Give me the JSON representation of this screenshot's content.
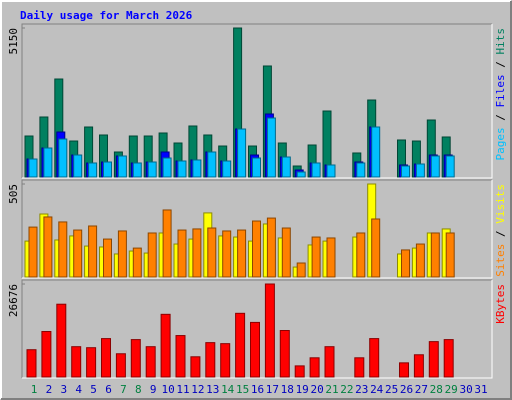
{
  "chart_data": [
    {
      "type": "bar",
      "title": "Daily usage for March 2026",
      "ylim": [
        0,
        5150
      ],
      "yticks": [
        5150
      ],
      "series": [
        {
          "name": "Pages",
          "color": "#00c0ff",
          "values": [
            622,
            1002,
            1313,
            760,
            484,
            518,
            726,
            484,
            518,
            657,
            553,
            588,
            864,
            553,
            1659,
            657,
            2039,
            691,
            173,
            484,
            415,
            0,
            484,
            1728,
            0,
            380,
            449,
            726,
            726,
            0,
            0
          ]
        },
        {
          "name": "Files",
          "color": "#0000ff",
          "values": [
            622,
            1002,
            1555,
            760,
            484,
            518,
            726,
            484,
            518,
            864,
            553,
            588,
            864,
            553,
            1659,
            760,
            2178,
            691,
            242,
            484,
            415,
            0,
            518,
            1728,
            0,
            415,
            449,
            760,
            760,
            0,
            0
          ]
        },
        {
          "name": "Hits",
          "color": "#008060",
          "values": [
            1417,
            2074,
            3387,
            1244,
            1728,
            1452,
            864,
            1417,
            1417,
            1521,
            1175,
            1763,
            1452,
            1071,
            5150,
            1071,
            3837,
            1175,
            380,
            1106,
            2281,
            0,
            830,
            2661,
            0,
            1279,
            1244,
            1970,
            1383,
            0,
            0
          ]
        }
      ],
      "legend_separator": " / "
    },
    {
      "type": "bar",
      "ylim": [
        0,
        505
      ],
      "yticks": [
        505
      ],
      "series": [
        {
          "name": "Sites",
          "color": "#ff8000",
          "values": [
            271,
            326,
            299,
            255,
            277,
            206,
            250,
            157,
            239,
            364,
            255,
            261,
            266,
            250,
            255,
            304,
            320,
            266,
            76,
            217,
            212,
            0,
            239,
            315,
            0,
            147,
            179,
            239,
            239,
            0,
            0
          ]
        },
        {
          "name": "Visits",
          "color": "#ffff00",
          "values": [
            195,
            342,
            201,
            223,
            168,
            163,
            125,
            141,
            130,
            239,
            179,
            206,
            348,
            223,
            217,
            195,
            288,
            212,
            54,
            174,
            195,
            0,
            217,
            505,
            0,
            125,
            157,
            239,
            261,
            0,
            0
          ]
        }
      ],
      "legend_separator": " / "
    },
    {
      "type": "bar",
      "ylim": [
        0,
        26676
      ],
      "yticks": [
        26676
      ],
      "categories": [
        "1",
        "2",
        "3",
        "4",
        "5",
        "6",
        "7",
        "8",
        "9",
        "10",
        "11",
        "12",
        "13",
        "14",
        "15",
        "16",
        "17",
        "18",
        "19",
        "20",
        "21",
        "22",
        "23",
        "24",
        "25",
        "26",
        "27",
        "28",
        "29",
        "30",
        "31"
      ],
      "category_colors": [
        "#008040",
        "#0000c0",
        "#0000c0",
        "#0000c0",
        "#0000c0",
        "#0000c0",
        "#008040",
        "#008040",
        "#0000c0",
        "#0000c0",
        "#0000c0",
        "#0000c0",
        "#0000c0",
        "#008040",
        "#008040",
        "#0000c0",
        "#0000c0",
        "#0000c0",
        "#0000c0",
        "#0000c0",
        "#008040",
        "#008040",
        "#0000c0",
        "#0000c0",
        "#0000c0",
        "#0000c0",
        "#0000c0",
        "#008040",
        "#008040",
        "#0000c0",
        "#0000c0"
      ],
      "series": [
        {
          "name": "KBytes",
          "color": "#ff0000",
          "values": [
            7829,
            13048,
            20878,
            8699,
            8409,
            11019,
            6669,
            10729,
            8699,
            17978,
            11889,
            5799,
            9859,
            9569,
            18268,
            15658,
            26676,
            13338,
            3190,
            5509,
            8699,
            0,
            5509,
            11019,
            0,
            4060,
            6379,
            10149,
            10729,
            0,
            0
          ]
        }
      ]
    }
  ]
}
